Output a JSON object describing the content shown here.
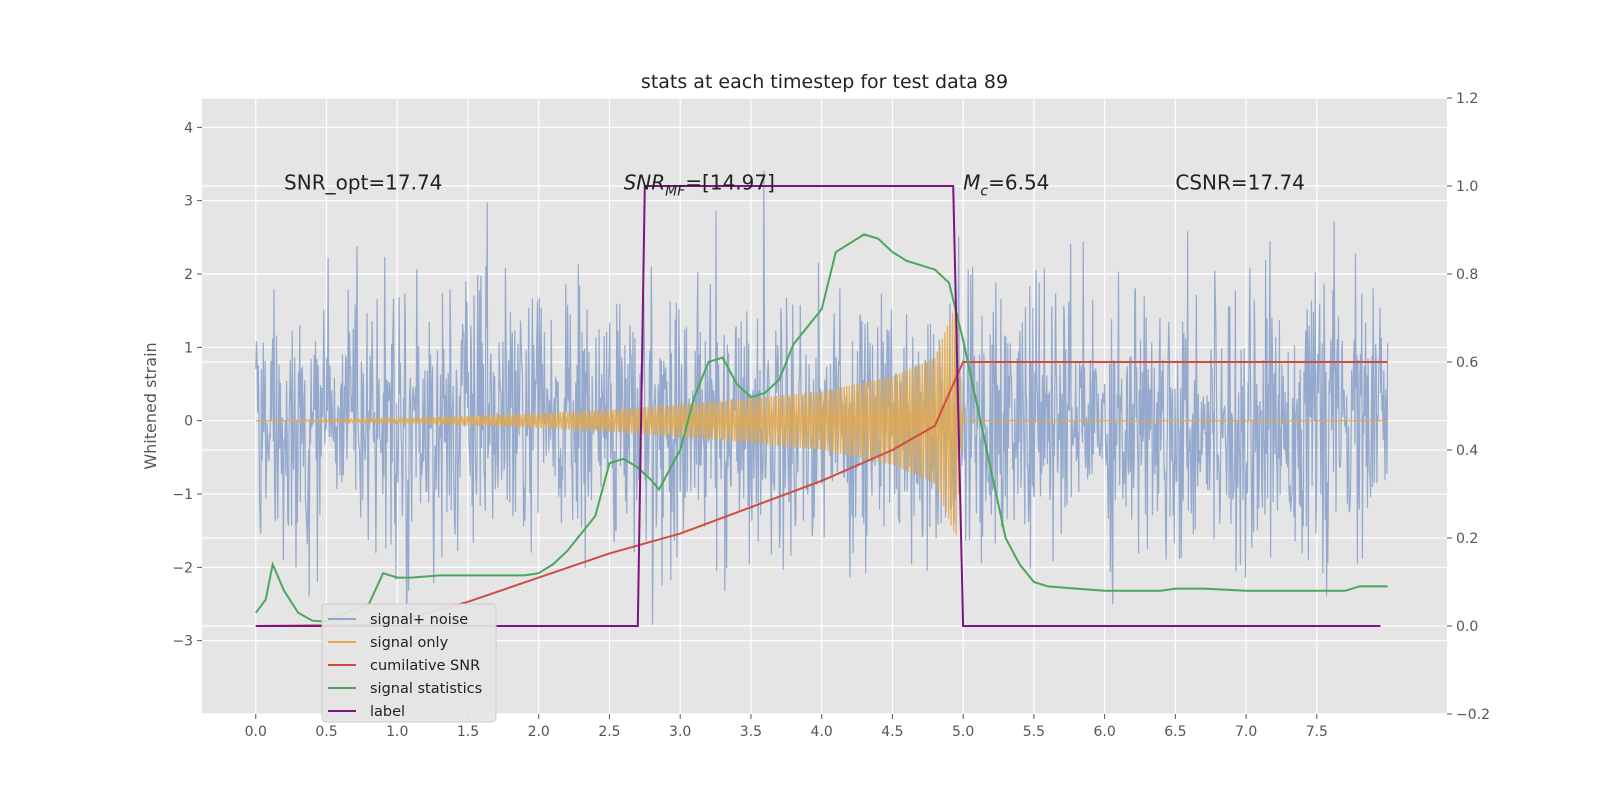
{
  "chart_data": {
    "type": "line",
    "title": "stats at each timestep for test data 89",
    "xlabel": "",
    "ylabel": "Whitened strain",
    "xlim": [
      -0.38,
      8.42
    ],
    "ylim": [
      -4.0,
      4.4
    ],
    "y2lim": [
      -0.2,
      1.2
    ],
    "xticks": [
      "0.0",
      "0.5",
      "1.0",
      "1.5",
      "2.0",
      "2.5",
      "3.0",
      "3.5",
      "4.0",
      "4.5",
      "5.0",
      "5.5",
      "6.0",
      "6.5",
      "7.0",
      "7.5"
    ],
    "yticks": [
      "−3",
      "−2",
      "−1",
      "0",
      "1",
      "2",
      "3",
      "4"
    ],
    "y2ticks": [
      "−0.2",
      "0.0",
      "0.2",
      "0.4",
      "0.6",
      "0.8",
      "1.0",
      "1.2"
    ],
    "grid": true,
    "legend_placement": "lower-left",
    "background": "#e5e5e5",
    "annotations": [
      {
        "text": "SNR_opt=17.74",
        "x": 0.2,
        "y": 3.25
      },
      {
        "text": "SNR_MF=[14.97]",
        "x": 2.6,
        "y": 3.25
      },
      {
        "text": "M_c=6.54",
        "x": 5.0,
        "y": 3.25
      },
      {
        "text": "CSNR=17.74",
        "x": 6.5,
        "y": 3.25
      }
    ],
    "series": [
      {
        "name": "signal+ noise",
        "axis": "left",
        "color": "#8fa5cb",
        "kind": "noise",
        "x_range": [
          0.0,
          8.0
        ],
        "sigma": 0.9,
        "max_abs": 4.05
      },
      {
        "name": "signal only",
        "axis": "left",
        "color": "#e3a84a",
        "kind": "chirp-envelope",
        "envelope": {
          "x": [
            0.0,
            1.0,
            2.0,
            2.5,
            3.0,
            3.5,
            4.0,
            4.5,
            4.8,
            4.95,
            5.0,
            8.0
          ],
          "y": [
            0.0,
            0.03,
            0.1,
            0.15,
            0.22,
            0.3,
            0.4,
            0.6,
            0.85,
            1.6,
            0.0,
            0.0
          ]
        }
      },
      {
        "name": "cumilative SNR",
        "axis": "right",
        "color": "#d24b40",
        "x": [
          0.0,
          0.9,
          1.5,
          2.0,
          2.5,
          3.0,
          3.5,
          4.0,
          4.5,
          4.8,
          5.0,
          8.0
        ],
        "y": [
          0.0,
          0.003,
          0.055,
          0.11,
          0.165,
          0.21,
          0.27,
          0.33,
          0.4,
          0.455,
          0.6,
          0.6
        ]
      },
      {
        "name": "signal statistics",
        "axis": "right",
        "color": "#4aa75b",
        "x": [
          0.0,
          0.07,
          0.12,
          0.2,
          0.3,
          0.4,
          0.5,
          0.6,
          0.8,
          0.9,
          1.0,
          1.1,
          1.3,
          1.5,
          1.7,
          1.9,
          2.0,
          2.1,
          2.2,
          2.4,
          2.5,
          2.6,
          2.7,
          2.8,
          2.85,
          2.9,
          3.0,
          3.1,
          3.2,
          3.3,
          3.4,
          3.5,
          3.6,
          3.7,
          3.8,
          3.9,
          4.0,
          4.1,
          4.2,
          4.3,
          4.4,
          4.5,
          4.6,
          4.7,
          4.8,
          4.9,
          5.0,
          5.1,
          5.2,
          5.3,
          5.4,
          5.5,
          5.6,
          5.8,
          6.0,
          6.2,
          6.4,
          6.5,
          6.7,
          7.0,
          7.3,
          7.5,
          7.7,
          7.8,
          7.9,
          8.0
        ],
        "y": [
          0.03,
          0.06,
          0.14,
          0.08,
          0.03,
          0.012,
          0.01,
          0.025,
          0.05,
          0.12,
          0.11,
          0.11,
          0.115,
          0.115,
          0.115,
          0.115,
          0.12,
          0.14,
          0.17,
          0.25,
          0.37,
          0.38,
          0.36,
          0.33,
          0.31,
          0.34,
          0.4,
          0.52,
          0.6,
          0.61,
          0.55,
          0.52,
          0.53,
          0.56,
          0.64,
          0.68,
          0.72,
          0.85,
          0.87,
          0.89,
          0.88,
          0.85,
          0.83,
          0.82,
          0.81,
          0.78,
          0.65,
          0.5,
          0.35,
          0.2,
          0.14,
          0.1,
          0.09,
          0.085,
          0.08,
          0.08,
          0.08,
          0.085,
          0.085,
          0.08,
          0.08,
          0.08,
          0.08,
          0.09,
          0.09,
          0.09
        ]
      },
      {
        "name": "label",
        "axis": "right",
        "color": "#7b1681",
        "x": [
          0.0,
          2.7,
          2.75,
          4.93,
          5.0,
          7.95
        ],
        "y": [
          0.0,
          0.0,
          1.0,
          1.0,
          0.0,
          0.0
        ]
      }
    ]
  }
}
